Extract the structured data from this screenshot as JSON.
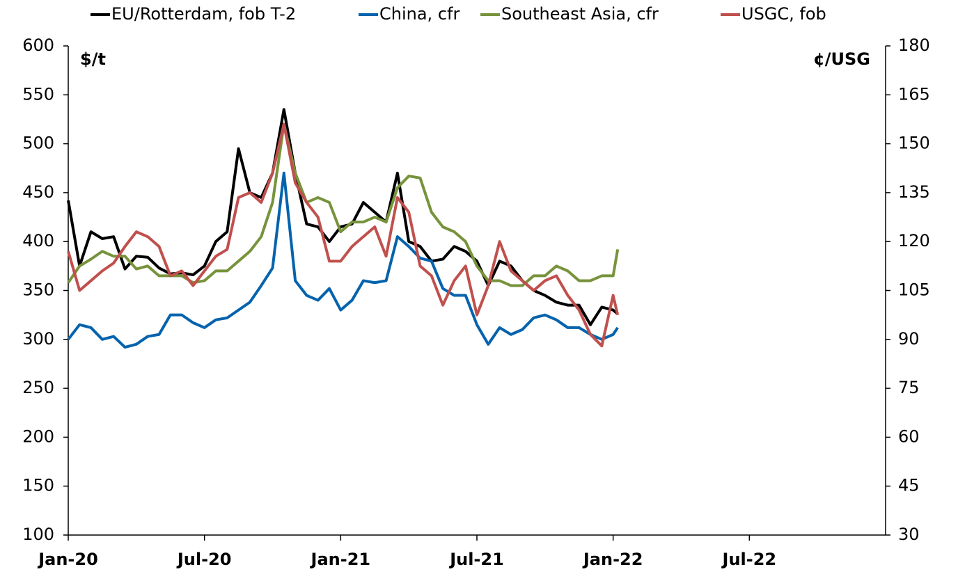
{
  "chart_data": {
    "type": "line",
    "legend": "top",
    "y_label": "$/t",
    "y2_label": "¢/USG",
    "x": [
      0,
      0.5,
      1,
      1.5,
      2,
      2.5,
      3,
      3.5,
      4,
      4.5,
      5,
      5.5,
      6,
      6.5,
      7,
      7.5,
      8,
      8.5,
      9,
      9.5,
      10,
      10.5,
      11,
      11.5,
      12,
      12.5,
      13,
      13.5,
      14,
      14.5,
      15,
      15.5,
      16,
      16.5,
      17,
      17.5,
      18,
      18.5,
      19,
      19.5,
      20,
      20.5,
      21,
      21.5,
      22,
      22.5,
      23,
      23.5,
      24,
      24.2
    ],
    "xlim": [
      0,
      36
    ],
    "xticks": [
      {
        "value": 0,
        "label": "Jan-20"
      },
      {
        "value": 6,
        "label": "Jul-20"
      },
      {
        "value": 12,
        "label": "Jan-21"
      },
      {
        "value": 18,
        "label": "Jul-21"
      },
      {
        "value": 24,
        "label": "Jan-22"
      },
      {
        "value": 30,
        "label": "Jul-22"
      }
    ],
    "ylim": [
      100,
      600
    ],
    "yticks": [
      100,
      150,
      200,
      250,
      300,
      350,
      400,
      450,
      500,
      550,
      600
    ],
    "y2lim": [
      30,
      180
    ],
    "y2ticks": [
      30,
      45,
      60,
      75,
      90,
      105,
      120,
      135,
      150,
      165,
      180
    ],
    "series": [
      {
        "name": "EU/Rotterdam, fob T-2",
        "color": "#000000",
        "values": [
          442,
          375,
          410,
          403,
          405,
          372,
          385,
          384,
          373,
          367,
          368,
          366,
          375,
          400,
          410,
          495,
          450,
          445,
          470,
          535,
          470,
          418,
          415,
          400,
          415,
          418,
          440,
          430,
          420,
          470,
          400,
          395,
          380,
          382,
          395,
          390,
          380,
          355,
          380,
          375,
          360,
          350,
          345,
          338,
          335,
          335,
          315,
          333,
          330,
          326
        ]
      },
      {
        "name": "China, cfr",
        "color": "#0563ad",
        "values": [
          300,
          315,
          312,
          300,
          303,
          292,
          295,
          303,
          305,
          325,
          325,
          317,
          312,
          320,
          322,
          330,
          338,
          355,
          373,
          470,
          360,
          345,
          340,
          352,
          330,
          340,
          360,
          358,
          360,
          405,
          395,
          383,
          380,
          352,
          345,
          345,
          315,
          295,
          312,
          305,
          310,
          322,
          325,
          320,
          312,
          312,
          305,
          300,
          305,
          312
        ]
      },
      {
        "name": "Southeast Asia, cfr",
        "color": "#77933c",
        "values": [
          358,
          375,
          382,
          390,
          385,
          385,
          372,
          375,
          365,
          365,
          365,
          358,
          360,
          370,
          370,
          380,
          390,
          405,
          440,
          520,
          470,
          440,
          445,
          440,
          410,
          420,
          420,
          425,
          420,
          455,
          467,
          465,
          430,
          415,
          410,
          400,
          375,
          360,
          360,
          355,
          355,
          365,
          365,
          375,
          370,
          360,
          360,
          365,
          365,
          392
        ]
      },
      {
        "name": "USGC, fob",
        "color": "#c0504d",
        "axis": "y2",
        "values": [
          117,
          105,
          108,
          111,
          113.4,
          118.5,
          123,
          121.5,
          118.5,
          109.5,
          111,
          106.5,
          111,
          115.5,
          117.6,
          133.5,
          135,
          132,
          141,
          156,
          138,
          132,
          127.5,
          114,
          114,
          118.5,
          121.5,
          124.5,
          115.5,
          133.5,
          129,
          112.5,
          109.5,
          100.5,
          108,
          112.5,
          97.5,
          106.5,
          120,
          111,
          108,
          105,
          108,
          109.5,
          103.5,
          99,
          91.5,
          88,
          103.5,
          97.5
        ]
      }
    ]
  }
}
